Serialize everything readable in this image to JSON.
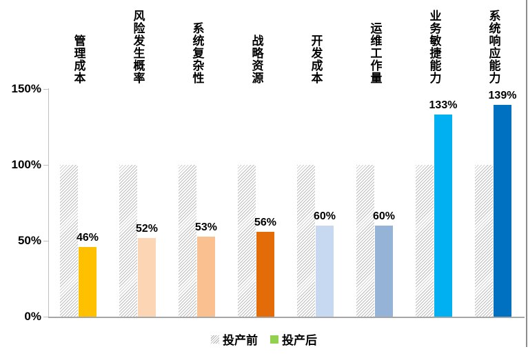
{
  "chart_data": {
    "type": "bar",
    "title": "",
    "categories": [
      "管理成本",
      "风险发生概率",
      "系统复杂性",
      "战略资源",
      "开发成本",
      "运维工作量",
      "业务敏捷能力",
      "系统响应能力"
    ],
    "series": [
      {
        "name": "投产前",
        "values": [
          100,
          100,
          100,
          100,
          100,
          100,
          100,
          100
        ]
      },
      {
        "name": "投产后",
        "values": [
          46,
          52,
          53,
          56,
          60,
          60,
          133,
          139
        ]
      }
    ],
    "value_labels": [
      "46%",
      "52%",
      "53%",
      "56%",
      "60%",
      "60%",
      "133%",
      "139%"
    ],
    "after_bar_colors": [
      "#FFC000",
      "#FCD5B4",
      "#FAC090",
      "#E36C09",
      "#C6D9F1",
      "#95B3D7",
      "#00B0F0",
      "#0070C0"
    ],
    "before_bar_style": "diagonal-hatch-light-gray",
    "ylim": [
      0,
      150
    ],
    "ytick_labels": [
      "150%",
      "100%",
      "50%",
      "0%"
    ],
    "grid": false,
    "legend": {
      "position": "bottom",
      "items": [
        {
          "label": "投产前",
          "marker": "hatched-gray-square",
          "marker_color": "#bdbdbd"
        },
        {
          "label": "投产后",
          "marker": "solid-square",
          "marker_color": "#92D050"
        }
      ]
    }
  }
}
